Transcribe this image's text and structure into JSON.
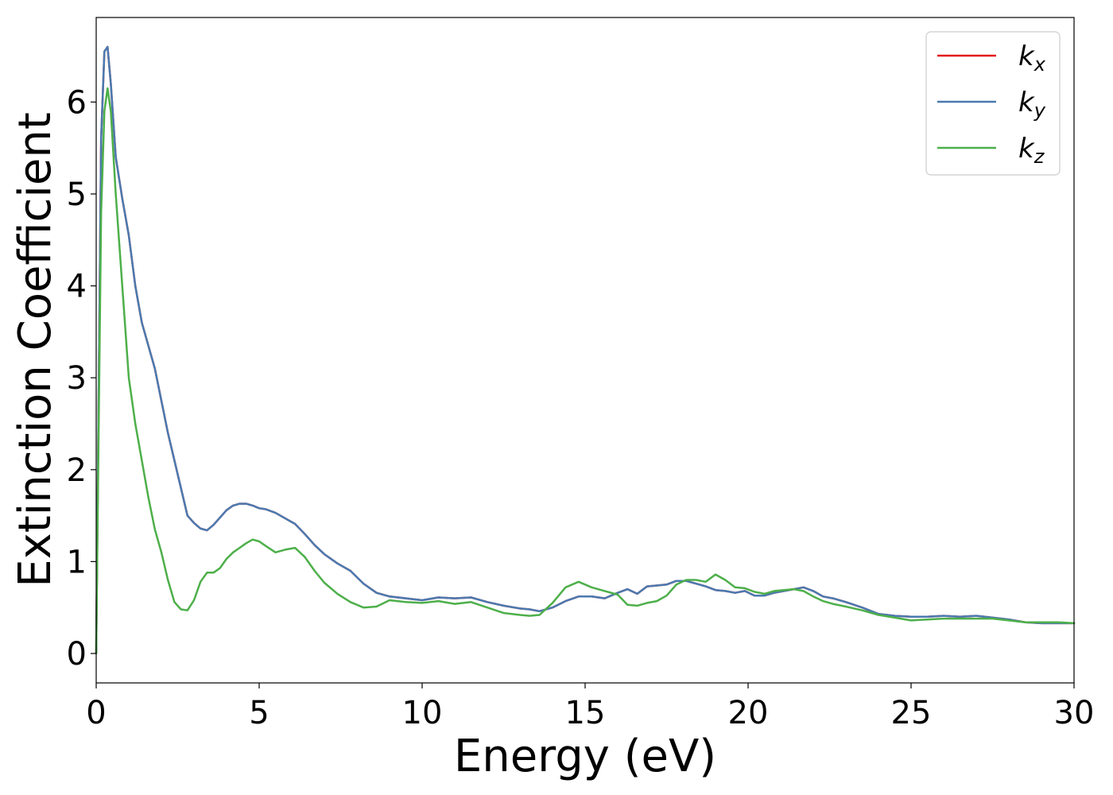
{
  "chart_data": {
    "type": "line",
    "xlabel": "Energy (eV)",
    "ylabel": "Extinction Coefficient",
    "xlim": [
      0,
      30
    ],
    "ylim": [
      -0.32,
      6.92
    ],
    "xticks": [
      0,
      5,
      10,
      15,
      20,
      25,
      30
    ],
    "yticks": [
      0,
      1,
      2,
      3,
      4,
      5,
      6
    ],
    "xtick_labels": [
      "0",
      "5",
      "10",
      "15",
      "20",
      "25",
      "30"
    ],
    "ytick_labels": [
      "0",
      "1",
      "2",
      "3",
      "4",
      "5",
      "6"
    ],
    "grid": false,
    "legend_position": "top-right",
    "series": [
      {
        "name": "k",
        "name_sub": "x",
        "color": "#e41a1c",
        "x": [
          0,
          0.05,
          0.15,
          0.25,
          0.35,
          0.45,
          0.6,
          0.8,
          1.0,
          1.2,
          1.4,
          1.6,
          1.8,
          2.0,
          2.2,
          2.4,
          2.6,
          2.8,
          3.0,
          3.2,
          3.4,
          3.6,
          3.8,
          4.0,
          4.2,
          4.4,
          4.6,
          4.8,
          5.0,
          5.2,
          5.5,
          5.8,
          6.1,
          6.4,
          6.7,
          7.0,
          7.4,
          7.8,
          8.2,
          8.6,
          9.0,
          9.5,
          10.0,
          10.5,
          11.0,
          11.5,
          12.0,
          12.5,
          13.0,
          13.3,
          13.6,
          14.0,
          14.4,
          14.8,
          15.2,
          15.6,
          16.0,
          16.3,
          16.6,
          16.9,
          17.2,
          17.5,
          17.8,
          18.1,
          18.4,
          18.7,
          19.0,
          19.3,
          19.6,
          19.9,
          20.2,
          20.5,
          20.8,
          21.1,
          21.4,
          21.7,
          22.0,
          22.3,
          22.6,
          23.0,
          23.5,
          24.0,
          24.5,
          25.0,
          25.5,
          26.0,
          26.5,
          27.0,
          27.5,
          28.0,
          28.5,
          29.0,
          29.5,
          30.0
        ],
        "y": [
          0.0,
          1.8,
          5.6,
          6.55,
          6.6,
          6.2,
          5.4,
          4.95,
          4.55,
          4.0,
          3.6,
          3.35,
          3.1,
          2.75,
          2.4,
          2.1,
          1.8,
          1.5,
          1.42,
          1.36,
          1.34,
          1.4,
          1.48,
          1.56,
          1.61,
          1.63,
          1.63,
          1.61,
          1.58,
          1.57,
          1.53,
          1.47,
          1.41,
          1.3,
          1.18,
          1.08,
          0.98,
          0.9,
          0.76,
          0.66,
          0.62,
          0.6,
          0.58,
          0.61,
          0.6,
          0.61,
          0.56,
          0.52,
          0.49,
          0.48,
          0.46,
          0.5,
          0.57,
          0.62,
          0.62,
          0.6,
          0.66,
          0.7,
          0.65,
          0.73,
          0.74,
          0.75,
          0.79,
          0.79,
          0.76,
          0.73,
          0.69,
          0.68,
          0.66,
          0.68,
          0.63,
          0.63,
          0.66,
          0.68,
          0.7,
          0.72,
          0.68,
          0.62,
          0.6,
          0.56,
          0.5,
          0.43,
          0.41,
          0.4,
          0.4,
          0.41,
          0.4,
          0.41,
          0.39,
          0.37,
          0.34,
          0.33,
          0.33,
          0.33
        ]
      },
      {
        "name": "k",
        "name_sub": "y",
        "color": "#4a7ab0",
        "x": [
          0,
          0.05,
          0.15,
          0.25,
          0.35,
          0.45,
          0.6,
          0.8,
          1.0,
          1.2,
          1.4,
          1.6,
          1.8,
          2.0,
          2.2,
          2.4,
          2.6,
          2.8,
          3.0,
          3.2,
          3.4,
          3.6,
          3.8,
          4.0,
          4.2,
          4.4,
          4.6,
          4.8,
          5.0,
          5.2,
          5.5,
          5.8,
          6.1,
          6.4,
          6.7,
          7.0,
          7.4,
          7.8,
          8.2,
          8.6,
          9.0,
          9.5,
          10.0,
          10.5,
          11.0,
          11.5,
          12.0,
          12.5,
          13.0,
          13.3,
          13.6,
          14.0,
          14.4,
          14.8,
          15.2,
          15.6,
          16.0,
          16.3,
          16.6,
          16.9,
          17.2,
          17.5,
          17.8,
          18.1,
          18.4,
          18.7,
          19.0,
          19.3,
          19.6,
          19.9,
          20.2,
          20.5,
          20.8,
          21.1,
          21.4,
          21.7,
          22.0,
          22.3,
          22.6,
          23.0,
          23.5,
          24.0,
          24.5,
          25.0,
          25.5,
          26.0,
          26.5,
          27.0,
          27.5,
          28.0,
          28.5,
          29.0,
          29.5,
          30.0
        ],
        "y": [
          0.0,
          1.8,
          5.6,
          6.55,
          6.6,
          6.2,
          5.4,
          4.95,
          4.55,
          4.0,
          3.6,
          3.35,
          3.1,
          2.75,
          2.4,
          2.1,
          1.8,
          1.5,
          1.42,
          1.36,
          1.34,
          1.4,
          1.48,
          1.56,
          1.61,
          1.63,
          1.63,
          1.61,
          1.58,
          1.57,
          1.53,
          1.47,
          1.41,
          1.3,
          1.18,
          1.08,
          0.98,
          0.9,
          0.76,
          0.66,
          0.62,
          0.6,
          0.58,
          0.61,
          0.6,
          0.61,
          0.56,
          0.52,
          0.49,
          0.48,
          0.46,
          0.5,
          0.57,
          0.62,
          0.62,
          0.6,
          0.66,
          0.7,
          0.65,
          0.73,
          0.74,
          0.75,
          0.79,
          0.79,
          0.76,
          0.73,
          0.69,
          0.68,
          0.66,
          0.68,
          0.63,
          0.63,
          0.66,
          0.68,
          0.7,
          0.72,
          0.68,
          0.62,
          0.6,
          0.56,
          0.5,
          0.43,
          0.41,
          0.4,
          0.4,
          0.41,
          0.4,
          0.41,
          0.39,
          0.37,
          0.34,
          0.33,
          0.33,
          0.33
        ]
      },
      {
        "name": "k",
        "name_sub": "z",
        "color": "#4daf4a",
        "x": [
          0,
          0.05,
          0.15,
          0.25,
          0.35,
          0.45,
          0.6,
          0.8,
          1.0,
          1.2,
          1.4,
          1.6,
          1.8,
          2.0,
          2.2,
          2.4,
          2.6,
          2.8,
          3.0,
          3.2,
          3.4,
          3.6,
          3.8,
          4.0,
          4.2,
          4.4,
          4.6,
          4.8,
          5.0,
          5.2,
          5.5,
          5.8,
          6.1,
          6.4,
          6.7,
          7.0,
          7.4,
          7.8,
          8.2,
          8.6,
          9.0,
          9.5,
          10.0,
          10.5,
          11.0,
          11.5,
          12.0,
          12.5,
          13.0,
          13.3,
          13.6,
          14.0,
          14.4,
          14.8,
          15.2,
          15.6,
          16.0,
          16.3,
          16.6,
          16.9,
          17.2,
          17.5,
          17.8,
          18.1,
          18.4,
          18.7,
          19.0,
          19.3,
          19.6,
          19.9,
          20.2,
          20.5,
          20.8,
          21.1,
          21.4,
          21.7,
          22.0,
          22.3,
          22.6,
          23.0,
          23.5,
          24.0,
          24.5,
          25.0,
          25.5,
          26.0,
          26.5,
          27.0,
          27.5,
          28.0,
          28.5,
          29.0,
          29.5,
          30.0
        ],
        "y": [
          0.0,
          1.6,
          4.8,
          5.9,
          6.15,
          5.9,
          5.0,
          4.0,
          3.0,
          2.5,
          2.1,
          1.7,
          1.35,
          1.1,
          0.8,
          0.56,
          0.48,
          0.47,
          0.58,
          0.78,
          0.88,
          0.88,
          0.93,
          1.03,
          1.1,
          1.15,
          1.2,
          1.24,
          1.22,
          1.17,
          1.1,
          1.13,
          1.15,
          1.05,
          0.9,
          0.77,
          0.65,
          0.56,
          0.5,
          0.51,
          0.58,
          0.56,
          0.55,
          0.57,
          0.54,
          0.56,
          0.5,
          0.44,
          0.42,
          0.41,
          0.42,
          0.55,
          0.72,
          0.78,
          0.72,
          0.68,
          0.64,
          0.53,
          0.52,
          0.55,
          0.57,
          0.63,
          0.75,
          0.8,
          0.8,
          0.78,
          0.86,
          0.8,
          0.72,
          0.71,
          0.67,
          0.65,
          0.68,
          0.69,
          0.7,
          0.68,
          0.62,
          0.57,
          0.54,
          0.51,
          0.47,
          0.42,
          0.39,
          0.36,
          0.37,
          0.38,
          0.38,
          0.38,
          0.38,
          0.36,
          0.34,
          0.34,
          0.34,
          0.33
        ]
      }
    ]
  }
}
